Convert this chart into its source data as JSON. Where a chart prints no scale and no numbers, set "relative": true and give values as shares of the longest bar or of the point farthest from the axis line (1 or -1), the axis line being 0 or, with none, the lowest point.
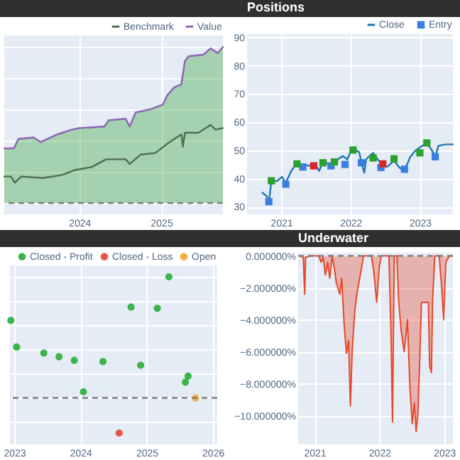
{
  "chart_data": [
    {
      "type": "line",
      "relative": true,
      "xlim": [
        "2023-01-30",
        "2025-10-04"
      ],
      "xticks": [
        "2024",
        "2025"
      ],
      "grid": true,
      "legend": "top right",
      "line_style": "solid",
      "ref_lines": [
        {
          "axis": "y",
          "value": 0,
          "color": "#7f7f7f",
          "line_style": "dashed"
        }
      ],
      "series": [
        {
          "type": "area",
          "color": "#2ca02c",
          "x": [
            "2023-01-30",
            "2023-03-14",
            "2023-04-03",
            "2023-06-09",
            "2023-07-12",
            "2023-09-25",
            "2023-11-28",
            "2024-01-01",
            "2024-04-22",
            "2024-05-11",
            "2024-07-26",
            "2024-08-13",
            "2024-09-09",
            "2024-11-13",
            "2025-01-08",
            "2025-01-28",
            "2025-02-28",
            "2025-04-01",
            "2025-04-17",
            "2025-05-04",
            "2025-07-09",
            "2025-08-10",
            "2025-09-12",
            "2025-10-04"
          ],
          "values": [
            0.35,
            0.35,
            0.41,
            0.42,
            0.39,
            0.44,
            0.47,
            0.48,
            0.49,
            0.53,
            0.54,
            0.49,
            0.58,
            0.6,
            0.63,
            0.69,
            0.74,
            0.76,
            0.91,
            0.94,
            0.95,
            0.99,
            0.96,
            1.0
          ]
        },
        {
          "name": "Benchmark",
          "color": "#4f6f52",
          "x": [
            "2023-01-30",
            "2023-03-01",
            "2023-03-18",
            "2023-04-16",
            "2023-07-23",
            "2023-10-16",
            "2023-12-09",
            "2024-02-24",
            "2024-04-30",
            "2024-07-26",
            "2024-08-13",
            "2024-10-01",
            "2024-12-05",
            "2025-02-07",
            "2025-04-01",
            "2025-04-08",
            "2025-04-17",
            "2025-06-17",
            "2025-08-10",
            "2025-09-01",
            "2025-10-04"
          ],
          "values": [
            0.17,
            0.17,
            0.13,
            0.17,
            0.16,
            0.18,
            0.21,
            0.23,
            0.28,
            0.28,
            0.25,
            0.31,
            0.32,
            0.39,
            0.44,
            0.36,
            0.45,
            0.45,
            0.5,
            0.47,
            0.48
          ]
        },
        {
          "name": "Value",
          "color": "#9467bd",
          "x": [
            "2023-01-30",
            "2023-03-14",
            "2023-04-03",
            "2023-06-09",
            "2023-07-12",
            "2023-09-25",
            "2023-11-28",
            "2024-01-01",
            "2024-04-22",
            "2024-05-11",
            "2024-07-26",
            "2024-08-13",
            "2024-09-09",
            "2024-11-13",
            "2025-01-08",
            "2025-01-28",
            "2025-02-28",
            "2025-04-01",
            "2025-04-17",
            "2025-05-04",
            "2025-07-09",
            "2025-08-10",
            "2025-09-12",
            "2025-10-04"
          ],
          "values": [
            0.35,
            0.35,
            0.41,
            0.42,
            0.39,
            0.44,
            0.47,
            0.48,
            0.49,
            0.53,
            0.54,
            0.49,
            0.58,
            0.6,
            0.63,
            0.69,
            0.74,
            0.76,
            0.91,
            0.94,
            0.95,
            0.99,
            0.96,
            1.0
          ]
        }
      ]
    },
    {
      "type": "line",
      "title": "Positions",
      "xlim": [
        "2020-07-05",
        "2023-06-24"
      ],
      "xticks": [
        "2021",
        "2022",
        "2023"
      ],
      "ylim": [
        27.3,
        91.2
      ],
      "yticks": [
        30,
        40,
        50,
        60,
        70,
        80,
        90
      ],
      "grid": true,
      "legend": "top right",
      "marker": "square",
      "line_style": "solid",
      "series": [
        {
          "name": "Close",
          "color": "#1f77b4",
          "marker": "none",
          "x": [
            "2020-09-24",
            "2020-10-19",
            "2020-10-28",
            "2020-11-10",
            "2020-12-12",
            "2021-01-05",
            "2021-01-25",
            "2021-02-23",
            "2021-03-19",
            "2021-04-25",
            "2021-06-02",
            "2021-07-08",
            "2021-07-20",
            "2021-08-09",
            "2021-09-20",
            "2021-10-15",
            "2021-11-21",
            "2021-12-15",
            "2022-01-09",
            "2022-02-15",
            "2022-02-27",
            "2022-03-14",
            "2022-03-24",
            "2022-04-30",
            "2022-05-24",
            "2022-06-18",
            "2022-07-12",
            "2022-08-18",
            "2022-09-17",
            "2022-10-12",
            "2022-11-12",
            "2022-12-07",
            "2023-01-13",
            "2023-02-07",
            "2023-03-03",
            "2023-03-23",
            "2023-04-09",
            "2023-05-16",
            "2023-06-24"
          ],
          "values": [
            35.0,
            33.6,
            31.4,
            38.9,
            39.2,
            40.6,
            38.5,
            42.7,
            45.0,
            45.0,
            44.5,
            44.1,
            42.7,
            45.9,
            45.0,
            46.3,
            48.0,
            46.8,
            50.8,
            49.4,
            45.9,
            42.0,
            46.8,
            49.1,
            46.8,
            45.0,
            44.1,
            46.3,
            43.8,
            42.7,
            47.7,
            49.8,
            51.6,
            52.6,
            50.3,
            47.7,
            51.6,
            52.1,
            52.1
          ]
        },
        {
          "type": "scatter",
          "name": "Entry",
          "color": "#3a7fe0",
          "x": [
            "2020-10-28",
            "2021-01-25",
            "2021-04-25",
            "2021-09-20",
            "2021-12-03",
            "2022-02-27",
            "2022-06-10",
            "2022-10-12",
            "2023-03-23"
          ],
          "values": [
            31.8,
            38.0,
            44.1,
            44.5,
            45.0,
            45.6,
            43.9,
            43.3,
            47.7
          ]
        },
        {
          "type": "scatter",
          "color": "#2ca02c",
          "x": [
            "2020-11-10",
            "2021-03-25",
            "2021-08-09",
            "2021-10-08",
            "2022-01-14",
            "2022-04-30",
            "2022-08-18",
            "2023-01-01",
            "2023-02-07"
          ],
          "values": [
            39.2,
            45.2,
            45.6,
            45.9,
            50.1,
            47.3,
            47.0,
            49.1,
            52.6
          ]
        },
        {
          "type": "scatter",
          "color": "#d62728",
          "x": [
            "2021-06-21",
            "2022-06-20"
          ],
          "values": [
            44.5,
            45.2
          ]
        }
      ]
    },
    {
      "type": "scatter",
      "relative": true,
      "xlim": [
        "2022-12-08",
        "2026-01-26"
      ],
      "xticks": [
        "2023",
        "2024",
        "2025",
        "2026"
      ],
      "grid": true,
      "legend": "top right",
      "marker": "circle",
      "ref_lines": [
        {
          "axis": "y",
          "value": 0,
          "color": "#7f7f7f",
          "line_style": "dashed"
        }
      ],
      "series": [
        {
          "name": "Closed - Profit",
          "color": "#3cb44b",
          "x": [
            "2022-12-13",
            "2023-01-14",
            "2023-06-13",
            "2023-09-05",
            "2023-11-28",
            "2024-01-18",
            "2024-05-05",
            "2024-10-07",
            "2024-11-29",
            "2025-03-01",
            "2025-05-04",
            "2025-08-03",
            "2025-08-18"
          ],
          "values": [
            0.64,
            0.42,
            0.37,
            0.34,
            0.31,
            0.05,
            0.3,
            0.75,
            0.27,
            0.74,
            1.0,
            0.13,
            0.18
          ]
        },
        {
          "name": "Closed - Loss",
          "color": "#e45747",
          "x": [
            "2024-08-02"
          ],
          "values": [
            -0.29
          ]
        },
        {
          "name": "Open",
          "color": "#f5b041",
          "x": [
            "2025-09-28"
          ],
          "values": [
            0.0
          ]
        }
      ]
    },
    {
      "type": "area",
      "title": "Underwater",
      "xlim": [
        "2020-10-01",
        "2023-02-19"
      ],
      "xticks": [
        "2021",
        "2022",
        "2023"
      ],
      "ylim": [
        -11.8,
        0.2
      ],
      "yticks": [
        {
          "value": 0,
          "label": "0.000000%"
        },
        {
          "value": -2,
          "label": "−2.000000%"
        },
        {
          "value": -4,
          "label": "−4.000000%"
        },
        {
          "value": -6,
          "label": "−6.000000%"
        },
        {
          "value": -8,
          "label": "−8.000000%"
        },
        {
          "value": -10,
          "label": "−10.000000%"
        }
      ],
      "grid": true,
      "ref_lines": [
        {
          "axis": "y",
          "value": 0,
          "color": "#7f7f7f",
          "line_style": "dashed"
        }
      ],
      "series": [
        {
          "color": "#e8482a",
          "x": [
            "2020-10-13",
            "2020-10-30",
            "2020-11-07",
            "2020-11-12",
            "2020-12-06",
            "2021-01-25",
            "2021-02-07",
            "2021-02-19",
            "2021-03-03",
            "2021-03-16",
            "2021-03-28",
            "2021-04-10",
            "2021-04-22",
            "2021-05-04",
            "2021-05-24",
            "2021-06-03",
            "2021-06-17",
            "2021-06-30",
            "2021-07-12",
            "2021-07-22",
            "2021-08-01",
            "2021-08-16",
            "2021-08-30",
            "2021-09-17",
            "2021-10-04",
            "2021-11-17",
            "2021-11-30",
            "2021-12-17",
            "2022-01-01",
            "2022-01-11",
            "2022-02-24",
            "2022-03-08",
            "2022-03-16",
            "2022-03-26",
            "2022-04-10",
            "2022-04-19",
            "2022-05-04",
            "2022-05-21",
            "2022-06-08",
            "2022-06-22",
            "2022-07-05",
            "2022-07-17",
            "2022-07-27",
            "2022-08-06",
            "2022-08-16",
            "2022-08-26",
            "2022-09-22",
            "2022-10-04",
            "2022-10-11",
            "2022-10-21",
            "2022-10-28",
            "2022-11-09",
            "2022-12-04",
            "2022-12-16",
            "2022-12-29",
            "2023-01-10",
            "2023-01-30",
            "2023-02-19"
          ],
          "values": [
            0,
            -0.1,
            -2.4,
            -0.1,
            0,
            0,
            -0.4,
            -0.1,
            -1.2,
            -0.4,
            -1.4,
            0,
            -0.7,
            -1.7,
            -2.4,
            -1.4,
            -4.3,
            -6.1,
            -5.3,
            -9.4,
            -6.0,
            -3.4,
            -2.2,
            -1.1,
            0,
            0,
            -0.9,
            -2.9,
            -0.7,
            0,
            0,
            -5.0,
            -10.4,
            0,
            0,
            -2.7,
            -4.7,
            -6.0,
            -4.0,
            -8.2,
            -10.5,
            -9.2,
            -11.0,
            -9.9,
            -6.6,
            -2.9,
            -2.9,
            -2.9,
            -6.9,
            -7.3,
            -2.7,
            0,
            0,
            -1.7,
            -4.0,
            -0.4,
            0,
            0
          ]
        }
      ]
    }
  ]
}
